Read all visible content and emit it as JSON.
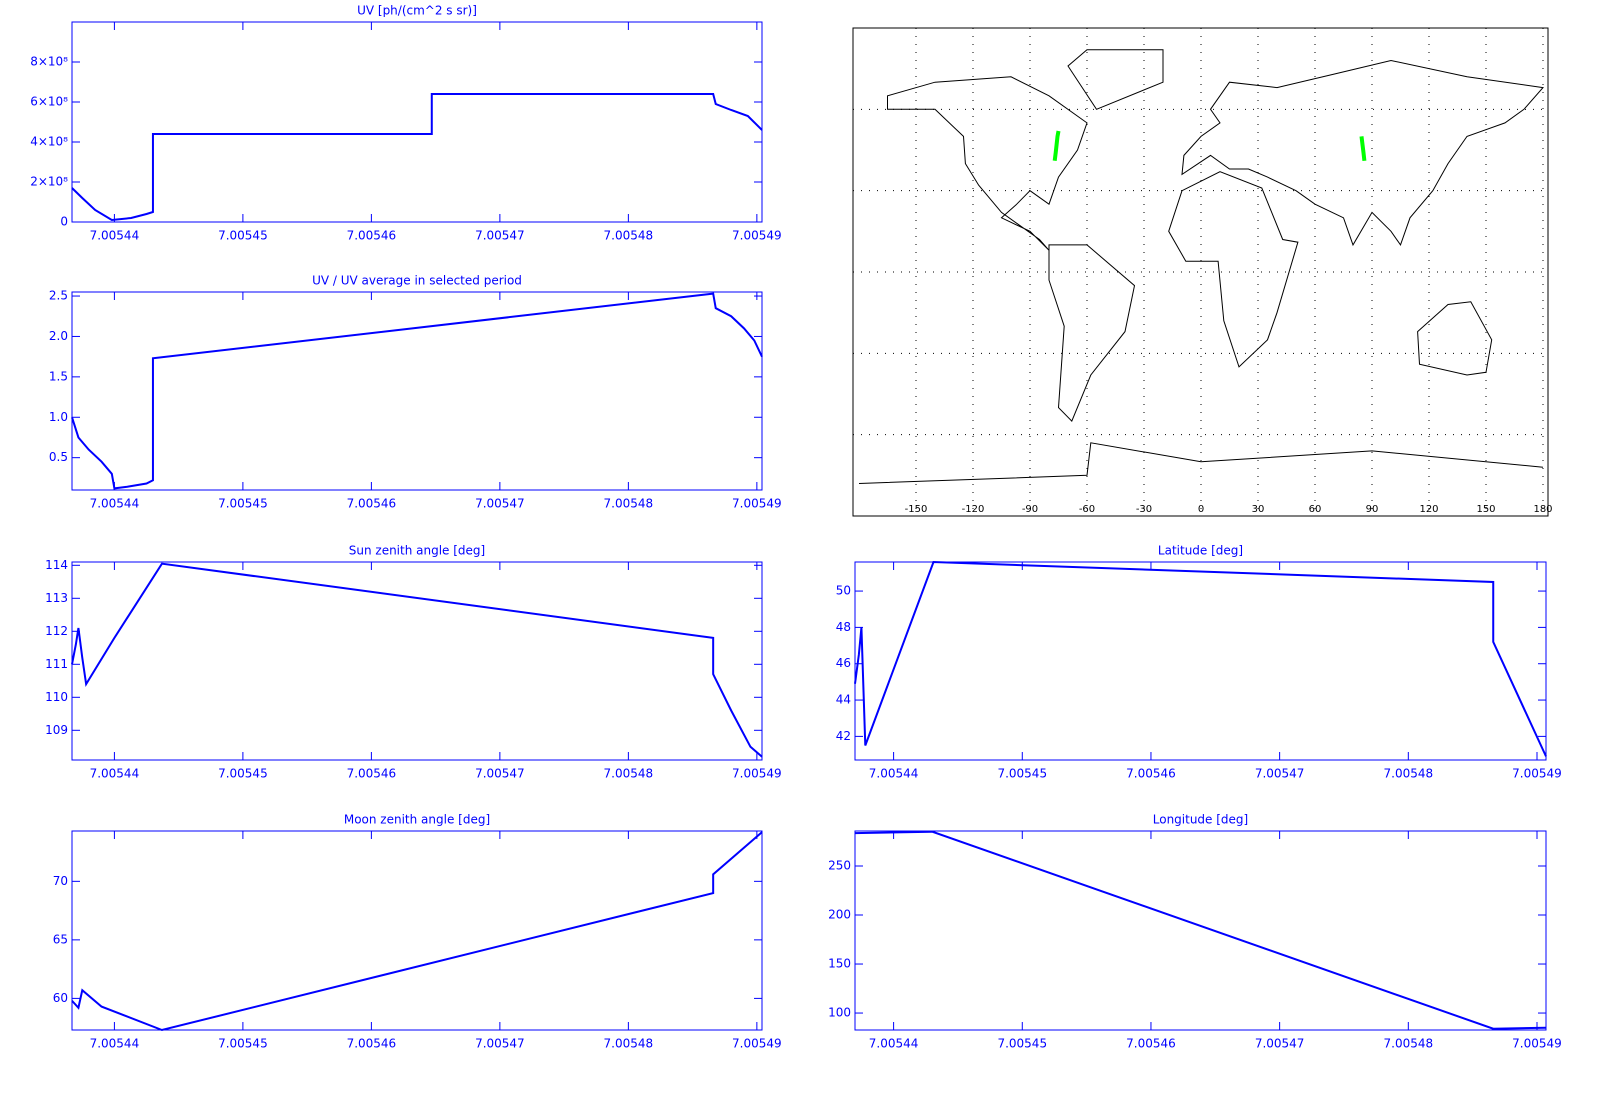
{
  "chart_data": [
    {
      "type": "line",
      "title": "UV [ph/(cm^2 s sr)]",
      "color": "#0000ff",
      "x": [
        7.0054367,
        7.0054375,
        7.0054385,
        7.0054398,
        7.0054413,
        7.0054425,
        7.005443,
        7.005443,
        7.0054647,
        7.0054647,
        7.0054866,
        7.0054868,
        7.005488,
        7.0054893,
        7.0054904
      ],
      "values": [
        170000000,
        120000000,
        60000000,
        10000000,
        20000000,
        40000000,
        50000000,
        440000000,
        440000000,
        640000000,
        640000000,
        590000000,
        560000000,
        530000000,
        460000000
      ],
      "xlim": [
        7.0054367,
        7.0054904
      ],
      "xticks": [
        7.00544,
        7.00545,
        7.00546,
        7.00547,
        7.00548,
        7.00549
      ],
      "ylim": [
        0,
        1000000000
      ],
      "yticks": [
        0,
        {
          "value": 200000000,
          "label": "2×10⁸"
        },
        {
          "value": 400000000,
          "label": "4×10⁸"
        },
        {
          "value": 600000000,
          "label": "6×10⁸"
        },
        {
          "value": 800000000,
          "label": "8×10⁸"
        }
      ]
    },
    {
      "type": "line",
      "title": "UV / UV average in selected period",
      "color": "#0000ff",
      "x": [
        7.0054367,
        7.0054372,
        7.005438,
        7.005439,
        7.0054398,
        7.00544,
        7.005441,
        7.0054425,
        7.005443,
        7.005443,
        7.0054866,
        7.0054868,
        7.005488,
        7.005489,
        7.0054898,
        7.0054904
      ],
      "values": [
        1.0,
        0.75,
        0.6,
        0.45,
        0.3,
        0.12,
        0.14,
        0.18,
        0.22,
        1.73,
        2.53,
        2.35,
        2.25,
        2.1,
        1.95,
        1.75
      ],
      "xlim": [
        7.0054367,
        7.0054904
      ],
      "xticks": [
        7.00544,
        7.00545,
        7.00546,
        7.00547,
        7.00548,
        7.00549
      ],
      "ylim": [
        0.1,
        2.55
      ],
      "yticks": [
        0.5,
        {
          "value": 1,
          "label": "1.0"
        },
        1.5,
        {
          "value": 2,
          "label": "2.0"
        },
        2.5
      ]
    },
    {
      "type": "map",
      "xlim": [
        -180,
        180
      ],
      "ylim": [
        -90,
        90
      ],
      "xticks": [
        -150,
        -120,
        -90,
        -60,
        -30,
        0,
        30,
        60,
        90,
        120,
        150,
        180
      ],
      "series": [
        {
          "color": "#00ff00",
          "x": [
            -77,
            -76.5,
            -76,
            -75.5,
            -75
          ],
          "values": [
            41,
            44,
            47,
            50,
            52
          ]
        },
        {
          "color": "#00ff00",
          "x": [
            84.5,
            85,
            85.5,
            86
          ],
          "values": [
            50,
            47,
            44,
            41
          ]
        }
      ]
    },
    {
      "type": "line",
      "title": "Sun zenith angle [deg]",
      "color": "#0000ff",
      "x": [
        7.0054367,
        7.005437,
        7.0054372,
        7.0054375,
        7.0054378,
        7.00544,
        7.0054437,
        7.0054866,
        7.0054866,
        7.005488,
        7.0054895,
        7.0054904
      ],
      "values": [
        111.0,
        111.6,
        112.1,
        111.2,
        110.4,
        111.8,
        114.05,
        111.8,
        110.7,
        109.6,
        108.5,
        108.2
      ],
      "xlim": [
        7.0054367,
        7.0054904
      ],
      "xticks": [
        7.00544,
        7.00545,
        7.00546,
        7.00547,
        7.00548,
        7.00549
      ],
      "ylim": [
        108.1,
        114.1
      ],
      "yticks": [
        109,
        110,
        111,
        112,
        113,
        114
      ]
    },
    {
      "type": "line",
      "title": "Latitude [deg]",
      "color": "#0000ff",
      "x": [
        7.005437,
        7.0054373,
        7.0054375,
        7.0054378,
        7.0054431,
        7.0054866,
        7.0054866,
        7.0054907
      ],
      "values": [
        44.9,
        46.5,
        48,
        41.5,
        51.6,
        50.5,
        47.2,
        40.9
      ],
      "xlim": [
        7.005437,
        7.0054907
      ],
      "xticks": [
        7.00544,
        7.00545,
        7.00546,
        7.00547,
        7.00548,
        7.00549
      ],
      "ylim": [
        40.7,
        51.6
      ],
      "yticks": [
        42,
        44,
        46,
        48,
        50
      ]
    },
    {
      "type": "line",
      "title": "Moon zenith angle [deg]",
      "color": "#0000ff",
      "x": [
        7.0054367,
        7.0054372,
        7.0054375,
        7.005439,
        7.0054437,
        7.0054866,
        7.0054866,
        7.0054904
      ],
      "values": [
        59.8,
        59.2,
        60.7,
        59.3,
        57.3,
        69.0,
        70.6,
        74.2
      ],
      "xlim": [
        7.0054367,
        7.0054904
      ],
      "xticks": [
        7.00544,
        7.00545,
        7.00546,
        7.00547,
        7.00548,
        7.00549
      ],
      "ylim": [
        57.3,
        74.3
      ],
      "yticks": [
        60,
        65,
        70
      ]
    },
    {
      "type": "line",
      "title": "Longitude [deg]",
      "color": "#0000ff",
      "x": [
        7.005437,
        7.005443,
        7.0054866,
        7.0054907
      ],
      "values": [
        283.5,
        285,
        84,
        85
      ],
      "xlim": [
        7.005437,
        7.0054907
      ],
      "xticks": [
        7.00544,
        7.00545,
        7.00546,
        7.00547,
        7.00548,
        7.00549
      ],
      "ylim": [
        82.7,
        285.7
      ],
      "yticks": [
        100,
        150,
        200,
        250
      ]
    }
  ]
}
